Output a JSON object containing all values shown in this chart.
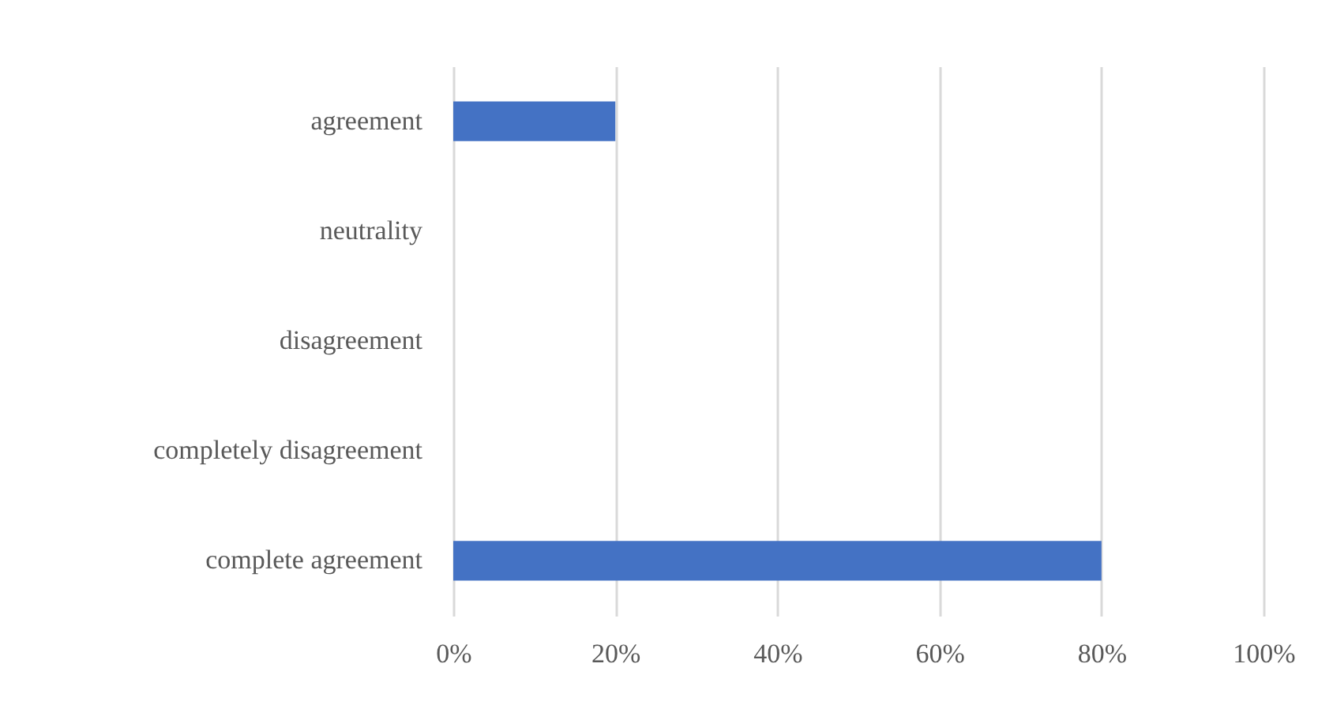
{
  "chart_data": {
    "type": "bar",
    "orientation": "horizontal",
    "categories": [
      "agreement",
      "neutrality",
      "disagreement",
      "completely disagreement",
      "complete agreement"
    ],
    "values": [
      20,
      0,
      0,
      0,
      80
    ],
    "color": "#4472c4",
    "xlim": [
      0,
      100
    ],
    "xticks": [
      {
        "value": 0,
        "label": "0%"
      },
      {
        "value": 20,
        "label": "20%"
      },
      {
        "value": 40,
        "label": "40%"
      },
      {
        "value": 60,
        "label": "60%"
      },
      {
        "value": 80,
        "label": "80%"
      },
      {
        "value": 100,
        "label": "100%"
      }
    ],
    "grid": "x"
  }
}
